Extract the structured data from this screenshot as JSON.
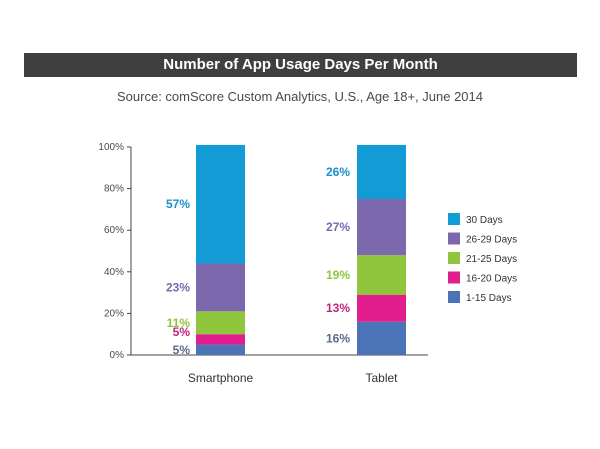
{
  "chart_data": {
    "type": "bar",
    "stacked": true,
    "title": "Number of App Usage Days Per Month",
    "subtitle": "Source: comScore Custom Analytics, U.S., Age 18+, June 2014",
    "categories": [
      "Smartphone",
      "Tablet"
    ],
    "ylim": [
      0,
      100
    ],
    "yticks": [
      "0%",
      "20%",
      "40%",
      "60%",
      "80%",
      "100%"
    ],
    "legend_position": "right",
    "series": [
      {
        "name": "1-15 Days",
        "values": [
          5,
          16
        ],
        "labels": [
          "5%",
          "16%"
        ],
        "color": "#4a73b8",
        "label_color": "#5a6a8a"
      },
      {
        "name": "16-20 Days",
        "values": [
          5,
          13
        ],
        "labels": [
          "5%",
          "13%"
        ],
        "color": "#e21d8c",
        "label_color": "#c4247b"
      },
      {
        "name": "21-25 Days",
        "values": [
          11,
          19
        ],
        "labels": [
          "11%",
          "19%"
        ],
        "color": "#8fc63e",
        "label_color": "#8fc63e"
      },
      {
        "name": "26-29 Days",
        "values": [
          23,
          27
        ],
        "labels": [
          "23%",
          "27%"
        ],
        "color": "#7b68ad",
        "label_color": "#7b68ad"
      },
      {
        "name": "30 Days",
        "values": [
          57,
          26
        ],
        "labels": [
          "57%",
          "26%"
        ],
        "color": "#139bd6",
        "label_color": "#1d8fc9"
      }
    ]
  }
}
